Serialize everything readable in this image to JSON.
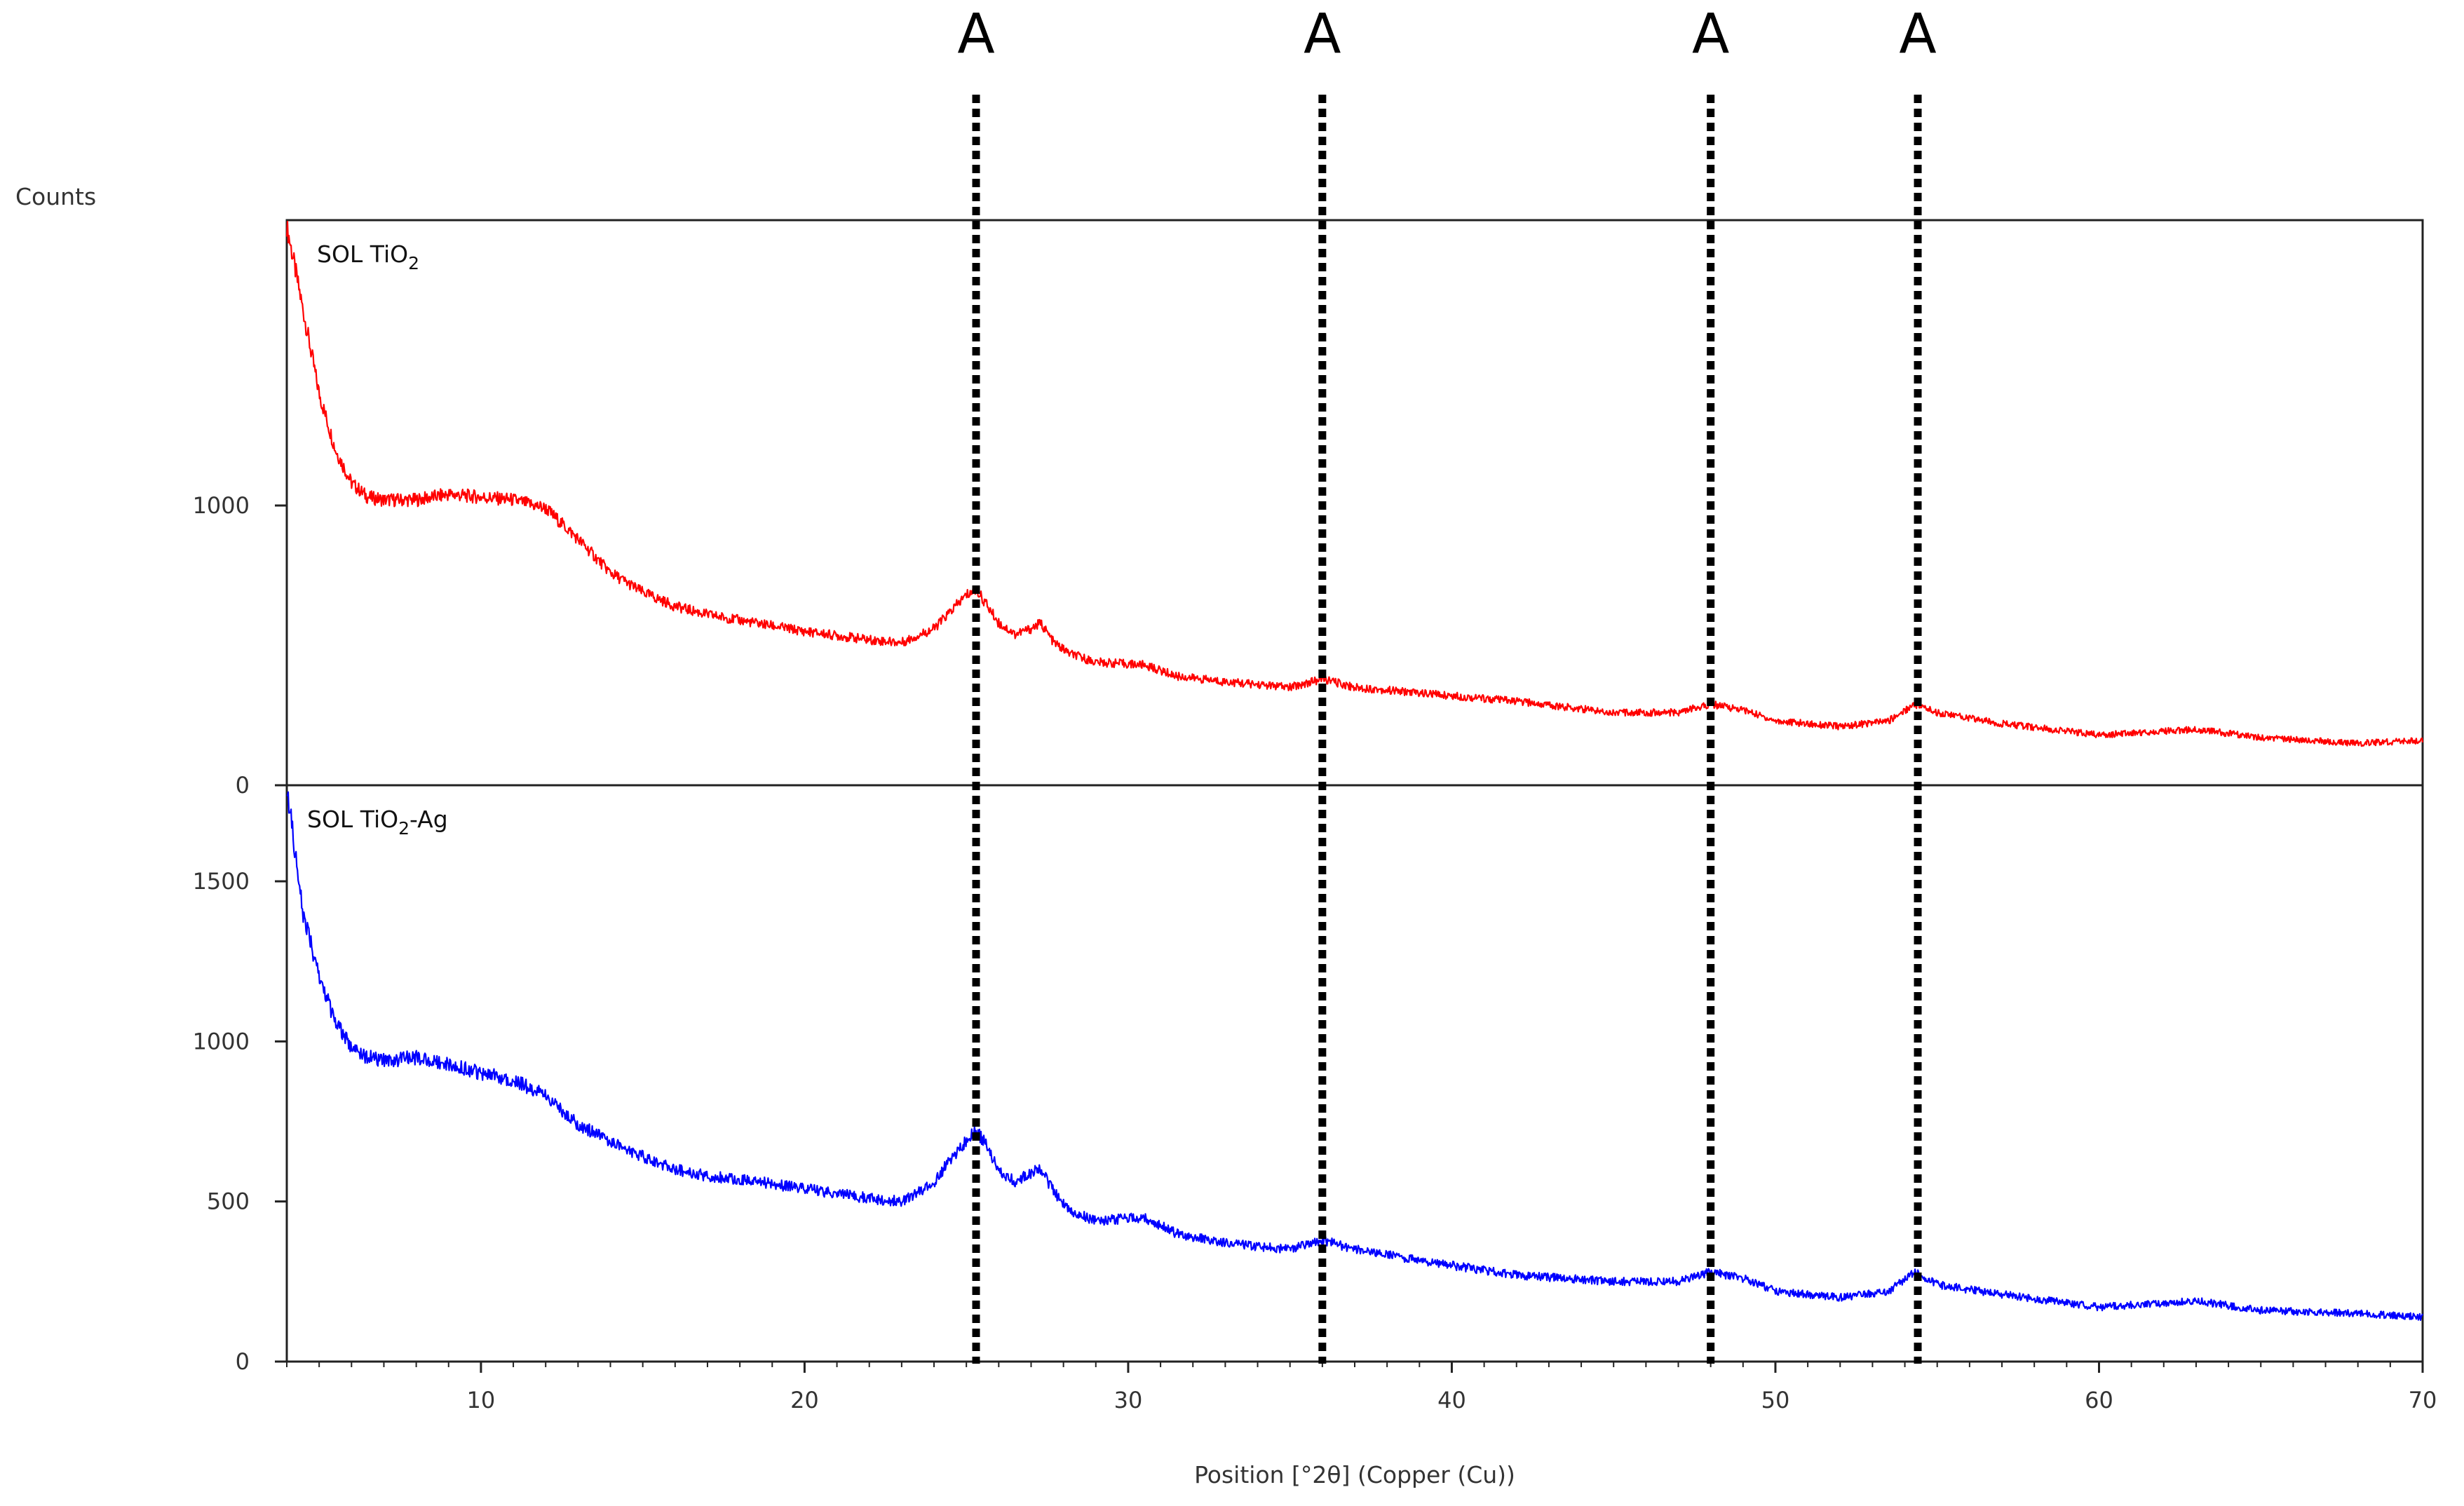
{
  "chart_data": {
    "type": "line",
    "xlabel": "Position [°2θ] (Copper (Cu))",
    "ylabel": "Counts",
    "xlim": [
      4,
      70
    ],
    "xticks": [
      10,
      20,
      30,
      40,
      50,
      60,
      70
    ],
    "grid": false,
    "panels": [
      {
        "label": "SOL TiO",
        "label_sub": "2",
        "label_suffix": "",
        "color": "#ff0000",
        "ylim": [
          0,
          2020
        ],
        "yticks": [
          0,
          1000
        ],
        "x": [
          4.0,
          4.5,
          5.0,
          5.5,
          6.0,
          6.5,
          7.0,
          8.0,
          9.0,
          10.0,
          11.0,
          12.0,
          13.0,
          14.0,
          15.0,
          16.0,
          17.0,
          18.0,
          20.0,
          22.0,
          23.0,
          24.0,
          24.5,
          25.0,
          25.3,
          25.6,
          26.0,
          26.5,
          27.0,
          27.3,
          27.7,
          28.2,
          29.0,
          30.5,
          31.5,
          33.0,
          35.0,
          36.0,
          37.0,
          40.0,
          42.0,
          45.0,
          47.0,
          48.0,
          49.0,
          50.0,
          52.0,
          53.5,
          54.3,
          55.0,
          57.0,
          60.0,
          63.0,
          65.0,
          68.0,
          70.0
        ],
        "values": [
          2000,
          1700,
          1400,
          1200,
          1080,
          1030,
          1020,
          1020,
          1040,
          1030,
          1020,
          990,
          880,
          760,
          690,
          640,
          610,
          590,
          550,
          520,
          510,
          560,
          620,
          680,
          700,
          650,
          580,
          540,
          560,
          580,
          510,
          470,
          440,
          430,
          390,
          370,
          350,
          380,
          350,
          320,
          300,
          260,
          260,
          290,
          270,
          230,
          210,
          230,
          290,
          260,
          220,
          180,
          200,
          170,
          150,
          160
        ]
      },
      {
        "label": "SOL TiO",
        "label_sub": "2",
        "label_suffix": "-Ag",
        "color": "#0000ff",
        "ylim": [
          0,
          1800
        ],
        "yticks": [
          0,
          500,
          1000,
          1500
        ],
        "x": [
          4.0,
          4.5,
          5.0,
          5.5,
          6.0,
          6.5,
          7.0,
          8.0,
          9.0,
          10.0,
          11.0,
          12.0,
          13.0,
          14.0,
          15.0,
          16.0,
          17.0,
          18.0,
          20.0,
          22.0,
          23.0,
          24.0,
          24.5,
          25.0,
          25.3,
          25.6,
          26.0,
          26.5,
          27.0,
          27.3,
          27.7,
          28.2,
          29.0,
          30.5,
          31.5,
          33.0,
          35.0,
          36.0,
          37.0,
          40.0,
          42.0,
          45.0,
          47.0,
          48.0,
          49.0,
          50.0,
          52.0,
          53.5,
          54.3,
          55.0,
          57.0,
          60.0,
          63.0,
          65.0,
          68.0,
          70.0
        ],
        "values": [
          1800,
          1400,
          1200,
          1060,
          980,
          950,
          940,
          950,
          930,
          900,
          880,
          830,
          740,
          690,
          640,
          600,
          580,
          570,
          540,
          510,
          500,
          560,
          630,
          690,
          720,
          680,
          600,
          560,
          590,
          600,
          530,
          470,
          440,
          450,
          400,
          370,
          350,
          380,
          350,
          300,
          270,
          250,
          250,
          280,
          260,
          220,
          200,
          220,
          280,
          240,
          210,
          170,
          190,
          160,
          150,
          140
        ]
      }
    ],
    "reference_lines": [
      {
        "x": 25.3,
        "label": "A"
      },
      {
        "x": 36.0,
        "label": "A"
      },
      {
        "x": 48.0,
        "label": "A"
      },
      {
        "x": 54.4,
        "label": "A"
      }
    ]
  }
}
